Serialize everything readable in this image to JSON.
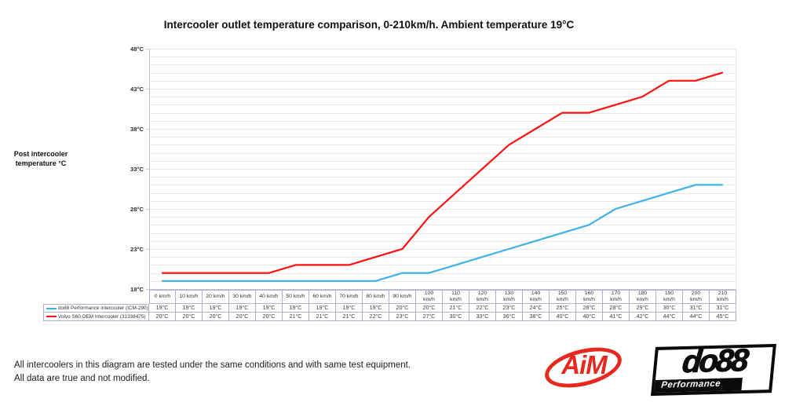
{
  "page": {
    "title": "Intercooler outlet temperature comparison, 0-210km/h. Ambient temperature 19°C",
    "y_axis_title_lines": [
      "Post intercooler",
      "temperature °C"
    ]
  },
  "chart_data": {
    "type": "line",
    "title": "Intercooler outlet temperature comparison, 0-210km/h. Ambient temperature 19°C",
    "ylabel": "Post intercooler temperature °C",
    "x_unit": "km/h",
    "categories": [
      "0 km/h",
      "10 km/h",
      "20 km/h",
      "30 km/h",
      "40 km/h",
      "50 km/h",
      "60 km/h",
      "70 km/h",
      "80 km/h",
      "90 km/h",
      "100 km/h",
      "110 km/h",
      "120 km/h",
      "130 km/h",
      "140 km/h",
      "150 km/h",
      "160 km/h",
      "170 km/h",
      "180 km/h",
      "190 km/h",
      "200 km/h",
      "210 km/h"
    ],
    "series": [
      {
        "name": "do88 Performance intercooler (ICM-290)",
        "color": "#3db2e8",
        "values": [
          19,
          19,
          19,
          19,
          19,
          19,
          19,
          19,
          19,
          20,
          20,
          21,
          22,
          23,
          24,
          25,
          26,
          28,
          29,
          30,
          31,
          31
        ]
      },
      {
        "name": "Volvo S60 OEM Intercooler (31338475)",
        "color": "#ff1111",
        "values": [
          20,
          20,
          20,
          20,
          20,
          21,
          21,
          21,
          22,
          23,
          27,
          30,
          33,
          36,
          38,
          40,
          40,
          41,
          42,
          44,
          44,
          45
        ]
      }
    ],
    "ylim": [
      18,
      48
    ],
    "y_major_step": 5,
    "y_minor_step": 1,
    "y_tick_labels": [
      "18°C",
      "23°C",
      "28°C",
      "33°C",
      "38°C",
      "43°C",
      "48°C"
    ],
    "value_suffix": "°C",
    "grid": true,
    "legend_position": "table-left"
  },
  "footer": {
    "line1": "All intercoolers in this diagram are tested under the same conditions and with same test equipment.",
    "line2": "All data are true and not modified."
  },
  "logos": {
    "aim": {
      "text": "AiM",
      "color": "#e8271e"
    },
    "do88": {
      "text": "do88",
      "subtext": "Performance",
      "color": "#0b0b0b"
    }
  }
}
